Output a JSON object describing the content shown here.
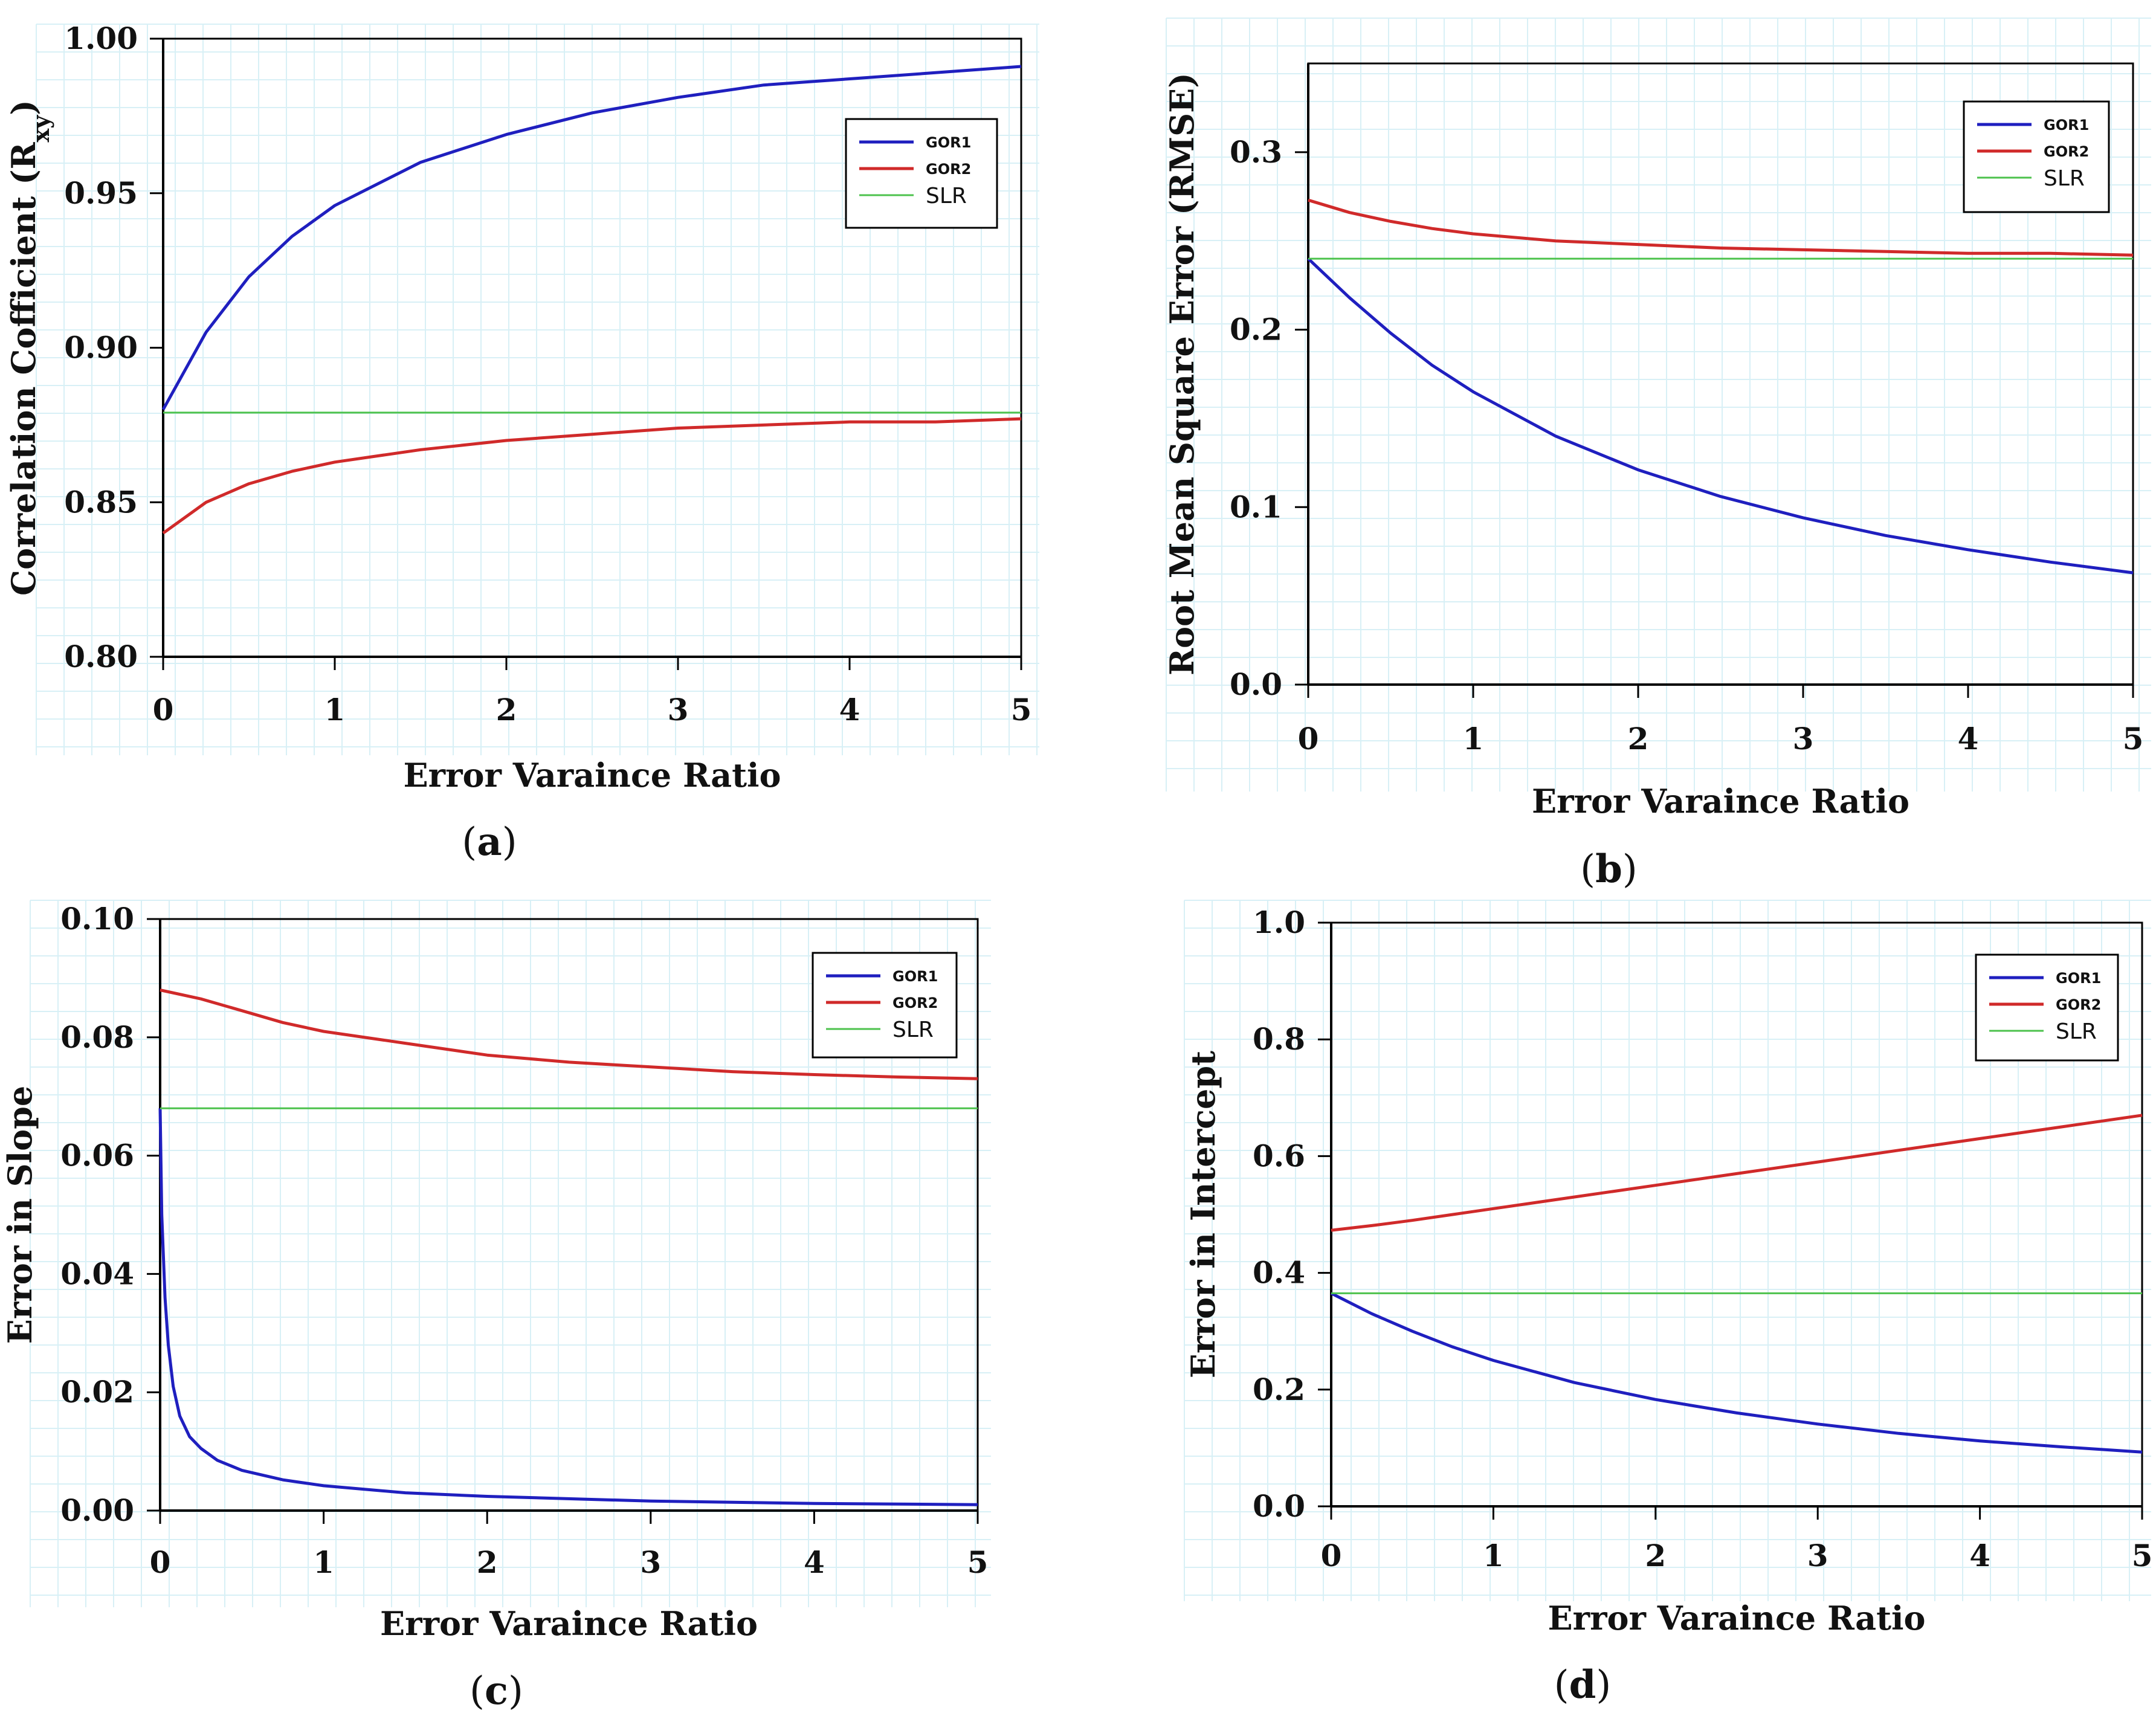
{
  "chart_data": [
    {
      "id": "a",
      "type": "line",
      "panel_label": "a",
      "xlabel": "Error Varaince Ratio",
      "ylabel": "Correlation Cofficient (R",
      "ylabel_subscript": "xy",
      "ylabel_close": ")",
      "xlim": [
        0,
        5
      ],
      "ylim": [
        0.8,
        1.0
      ],
      "xticks": [
        0,
        1,
        2,
        3,
        4,
        5
      ],
      "yticks": [
        0.8,
        0.85,
        0.9,
        0.95,
        1.0
      ],
      "ytick_labels": [
        "0.80",
        "0.85",
        "0.90",
        "0.95",
        "1.00"
      ],
      "legend": {
        "position": "top-right",
        "entries": [
          "GOR1",
          "GOR2",
          "SLR"
        ]
      },
      "series": [
        {
          "name": "GOR1",
          "color": "#1f1fbf",
          "x": [
            0,
            0.25,
            0.5,
            0.75,
            1,
            1.5,
            2,
            2.5,
            3,
            3.5,
            4,
            4.5,
            5
          ],
          "values": [
            0.88,
            0.905,
            0.923,
            0.936,
            0.946,
            0.96,
            0.969,
            0.976,
            0.981,
            0.985,
            0.987,
            0.989,
            0.991
          ]
        },
        {
          "name": "GOR2",
          "color": "#d02a2a",
          "x": [
            0,
            0.25,
            0.5,
            0.75,
            1,
            1.5,
            2,
            2.5,
            3,
            3.5,
            4,
            4.5,
            5
          ],
          "values": [
            0.84,
            0.85,
            0.856,
            0.86,
            0.863,
            0.867,
            0.87,
            0.872,
            0.874,
            0.875,
            0.876,
            0.876,
            0.877
          ]
        },
        {
          "name": "SLR",
          "color": "#4cc24c",
          "x": [
            0,
            5
          ],
          "values": [
            0.879,
            0.879
          ]
        }
      ]
    },
    {
      "id": "b",
      "type": "line",
      "panel_label": "b",
      "xlabel": "Error Varaince Ratio",
      "ylabel": "Root Mean Square Error (RMSE)",
      "xlim": [
        0,
        5
      ],
      "ylim": [
        0.0,
        0.35
      ],
      "xticks": [
        0,
        1,
        2,
        3,
        4,
        5
      ],
      "yticks": [
        0.0,
        0.1,
        0.2,
        0.3
      ],
      "ytick_labels": [
        "0.0",
        "0.1",
        "0.2",
        "0.3"
      ],
      "legend": {
        "position": "top-right",
        "entries": [
          "GOR1",
          "GOR2",
          "SLR"
        ]
      },
      "series": [
        {
          "name": "GOR1",
          "color": "#1f1fbf",
          "x": [
            0,
            0.25,
            0.5,
            0.75,
            1,
            1.5,
            2,
            2.5,
            3,
            3.5,
            4,
            4.5,
            5
          ],
          "values": [
            0.24,
            0.218,
            0.198,
            0.18,
            0.165,
            0.14,
            0.121,
            0.106,
            0.094,
            0.084,
            0.076,
            0.069,
            0.063
          ]
        },
        {
          "name": "GOR2",
          "color": "#d02a2a",
          "x": [
            0,
            0.25,
            0.5,
            0.75,
            1,
            1.5,
            2,
            2.5,
            3,
            3.5,
            4,
            4.5,
            5
          ],
          "values": [
            0.273,
            0.266,
            0.261,
            0.257,
            0.254,
            0.25,
            0.248,
            0.246,
            0.245,
            0.244,
            0.243,
            0.243,
            0.242
          ]
        },
        {
          "name": "SLR",
          "color": "#4cc24c",
          "x": [
            0,
            5
          ],
          "values": [
            0.24,
            0.24
          ]
        }
      ]
    },
    {
      "id": "c",
      "type": "line",
      "panel_label": "c",
      "xlabel": "Error Varaince Ratio",
      "ylabel": "Error in Slope",
      "xlim": [
        0,
        5
      ],
      "ylim": [
        0.0,
        0.1
      ],
      "xticks": [
        0,
        1,
        2,
        3,
        4,
        5
      ],
      "yticks": [
        0.0,
        0.02,
        0.04,
        0.06,
        0.08,
        0.1
      ],
      "ytick_labels": [
        "0.00",
        "0.02",
        "0.04",
        "0.06",
        "0.08",
        "0.10"
      ],
      "legend": {
        "position": "top-right",
        "entries": [
          "GOR1",
          "GOR2",
          "SLR"
        ]
      },
      "series": [
        {
          "name": "GOR1",
          "color": "#1f1fbf",
          "x": [
            0,
            0.01,
            0.03,
            0.05,
            0.08,
            0.12,
            0.18,
            0.25,
            0.35,
            0.5,
            0.75,
            1,
            1.5,
            2,
            3,
            4,
            5
          ],
          "values": [
            0.068,
            0.05,
            0.036,
            0.028,
            0.021,
            0.016,
            0.0125,
            0.0105,
            0.0085,
            0.0068,
            0.0052,
            0.0042,
            0.003,
            0.0024,
            0.0016,
            0.0012,
            0.001
          ]
        },
        {
          "name": "GOR2",
          "color": "#d02a2a",
          "x": [
            0,
            0.25,
            0.5,
            0.75,
            1,
            1.5,
            2,
            2.5,
            3,
            3.5,
            4,
            4.5,
            5
          ],
          "values": [
            0.088,
            0.0865,
            0.0845,
            0.0825,
            0.081,
            0.079,
            0.077,
            0.0758,
            0.075,
            0.0742,
            0.0737,
            0.0733,
            0.073
          ]
        },
        {
          "name": "SLR",
          "color": "#4cc24c",
          "x": [
            0,
            5
          ],
          "values": [
            0.068,
            0.068
          ]
        }
      ]
    },
    {
      "id": "d",
      "type": "line",
      "panel_label": "d",
      "xlabel": "Error Varaince Ratio",
      "ylabel": "Error in Intercept",
      "xlim": [
        0,
        5
      ],
      "ylim": [
        0.0,
        1.0
      ],
      "xticks": [
        0,
        1,
        2,
        3,
        4,
        5
      ],
      "yticks": [
        0.0,
        0.2,
        0.4,
        0.6,
        0.8,
        1.0
      ],
      "ytick_labels": [
        "0.0",
        "0.2",
        "0.4",
        "0.6",
        "0.8",
        "1.0"
      ],
      "legend": {
        "position": "top-right",
        "entries": [
          "GOR1",
          "GOR2",
          "SLR"
        ]
      },
      "series": [
        {
          "name": "GOR1",
          "color": "#1f1fbf",
          "x": [
            0,
            0.25,
            0.5,
            0.75,
            1,
            1.5,
            2,
            2.5,
            3,
            3.5,
            4,
            4.5,
            5
          ],
          "values": [
            0.365,
            0.33,
            0.3,
            0.273,
            0.25,
            0.212,
            0.183,
            0.16,
            0.141,
            0.125,
            0.112,
            0.102,
            0.093
          ]
        },
        {
          "name": "GOR2",
          "color": "#d02a2a",
          "x": [
            0,
            0.25,
            0.5,
            0.75,
            1,
            1.5,
            2,
            2.5,
            3,
            3.5,
            4,
            4.5,
            5
          ],
          "values": [
            0.473,
            0.481,
            0.49,
            0.5,
            0.51,
            0.53,
            0.55,
            0.57,
            0.59,
            0.61,
            0.63,
            0.65,
            0.67
          ]
        },
        {
          "name": "SLR",
          "color": "#4cc24c",
          "x": [
            0,
            5
          ],
          "values": [
            0.365,
            0.365
          ]
        }
      ]
    }
  ]
}
